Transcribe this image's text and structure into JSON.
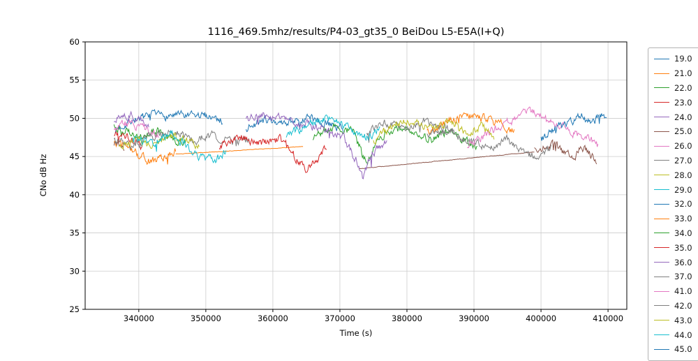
{
  "chart_data": {
    "type": "line",
    "title": "1116_469.5mhz/results/P4-03_gt35_0 BeiDou L5-E5A(I+Q)",
    "xlabel": "Time (s)",
    "ylabel": "CNo dB Hz",
    "xlim": [
      332000,
      412800
    ],
    "ylim": [
      25,
      60
    ],
    "xticks": [
      340000,
      350000,
      360000,
      370000,
      380000,
      390000,
      400000,
      410000
    ],
    "yticks": [
      25,
      30,
      35,
      40,
      45,
      50,
      55,
      60
    ],
    "grid": true,
    "grid_color": "#cccccc",
    "legend_position": "right-outside",
    "series": [
      {
        "name": "19.0",
        "color": "#1f77b4",
        "segments": [
          {
            "x": [
              336500,
              339000,
              342000,
              345000,
              348000,
              350500,
              352500
            ],
            "y": [
              48.5,
              49.8,
              50.3,
              50.4,
              50.2,
              50.4,
              49.6
            ],
            "noise": 0.45
          }
        ]
      },
      {
        "name": "21.0",
        "color": "#ff7f0e",
        "segments": [
          {
            "x": [
              336300,
              338500,
              340500,
              342500,
              344000,
              345500
            ],
            "y": [
              47.2,
              46.0,
              44.8,
              44.3,
              45.2,
              46.0
            ],
            "noise": 0.5
          },
          {
            "x": [
              345500,
              364500
            ],
            "y": [
              45.3,
              46.3
            ],
            "noise": 0.03
          }
        ]
      },
      {
        "name": "22.0",
        "color": "#2ca02c",
        "segments": [
          {
            "x": [
              336300,
              338000,
              340000,
              342500,
              345000,
              347000
            ],
            "y": [
              48.8,
              48.2,
              47.6,
              48.3,
              47.4,
              46.8
            ],
            "noise": 0.45
          }
        ]
      },
      {
        "name": "23.0",
        "color": "#d62728",
        "segments": [
          {
            "x": [
              336300,
              337500,
              339000,
              340500
            ],
            "y": [
              47.5,
              48.2,
              47.0,
              46.2
            ],
            "noise": 0.45
          }
        ]
      },
      {
        "name": "24.0",
        "color": "#9467bd",
        "segments": [
          {
            "x": [
              336300,
              338000,
              340000,
              341500
            ],
            "y": [
              49.7,
              50.4,
              50.1,
              49.3
            ],
            "noise": 0.45
          }
        ]
      },
      {
        "name": "25.0",
        "color": "#8c564b",
        "segments": [
          {
            "x": [
              336300,
              337800
            ],
            "y": [
              46.8,
              46.2
            ],
            "noise": 0.4
          },
          {
            "x": [
              372800,
              399000
            ],
            "y": [
              43.4,
              45.6
            ],
            "noise": 0.03
          },
          {
            "x": [
              399000,
              402000,
              404500,
              406500,
              408300
            ],
            "y": [
              45.8,
              46.5,
              45.0,
              46.2,
              44.5
            ],
            "noise": 0.5
          }
        ]
      },
      {
        "name": "26.0",
        "color": "#e377c2",
        "segments": [
          {
            "x": [
              336300,
              338500,
              341000,
              343000
            ],
            "y": [
              48.9,
              49.4,
              48.6,
              47.9
            ],
            "noise": 0.45
          }
        ]
      },
      {
        "name": "27.0",
        "color": "#7f7f7f",
        "segments": [
          {
            "x": [
              336300,
              339000,
              342000,
              345000,
              348000,
              351000,
              354000,
              356500
            ],
            "y": [
              47.0,
              46.4,
              47.6,
              48.3,
              47.2,
              47.8,
              46.9,
              47.4
            ],
            "noise": 0.45
          }
        ]
      },
      {
        "name": "28.0",
        "color": "#bcbd22",
        "segments": [
          {
            "x": [
              337000,
              339500,
              342000,
              344500,
              347000,
              349000
            ],
            "y": [
              46.2,
              47.3,
              46.5,
              47.8,
              47.1,
              46.4
            ],
            "noise": 0.45
          }
        ]
      },
      {
        "name": "29.0",
        "color": "#17becf",
        "segments": [
          {
            "x": [
              339000,
              342000,
              345000,
              347500,
              349500,
              351500,
              353000
            ],
            "y": [
              47.4,
              46.8,
              47.9,
              46.2,
              44.8,
              44.4,
              45.9
            ],
            "noise": 0.45
          }
        ]
      },
      {
        "name": "32.0",
        "color": "#1f77b4",
        "segments": [
          {
            "x": [
              356000,
              359000,
              362000,
              365000,
              368000,
              370500
            ],
            "y": [
              48.8,
              49.8,
              49.3,
              50.0,
              49.4,
              48.6
            ],
            "noise": 0.45
          }
        ]
      },
      {
        "name": "33.0",
        "color": "#ff7f0e",
        "segments": [
          {
            "x": [
              383000,
              386000,
              389000,
              391500,
              394000,
              396000
            ],
            "y": [
              48.0,
              49.6,
              50.4,
              50.0,
              49.3,
              48.2
            ],
            "noise": 0.45
          }
        ]
      },
      {
        "name": "34.0",
        "color": "#2ca02c",
        "segments": [
          {
            "x": [
              366000,
              369000,
              372000,
              374000,
              376000,
              378500,
              381000,
              383500,
              386000,
              388500,
              390500
            ],
            "y": [
              47.6,
              48.9,
              48.2,
              44.0,
              47.5,
              48.8,
              48.0,
              47.2,
              48.3,
              47.0,
              46.2
            ],
            "noise": 0.45
          }
        ]
      },
      {
        "name": "35.0",
        "color": "#d62728",
        "segments": [
          {
            "x": [
              352000,
              355000,
              358000,
              361000,
              363500,
              365000,
              366500,
              368000
            ],
            "y": [
              46.5,
              47.6,
              46.8,
              47.3,
              44.8,
              43.2,
              44.6,
              46.0
            ],
            "noise": 0.45
          }
        ]
      },
      {
        "name": "36.0",
        "color": "#9467bd",
        "segments": [
          {
            "x": [
              356000,
              359000,
              362000,
              365000,
              368000,
              370500,
              372500,
              373500,
              374500,
              377000
            ],
            "y": [
              49.9,
              50.5,
              49.8,
              49.2,
              48.6,
              47.4,
              44.5,
              41.9,
              45.0,
              47.3
            ],
            "noise": 0.45
          }
        ]
      },
      {
        "name": "37.0",
        "color": "#7f7f7f",
        "segments": [
          {
            "x": [
              383000,
              386000,
              389000,
              392000,
              395000,
              397500,
              399500,
              401500
            ],
            "y": [
              47.8,
              48.4,
              47.0,
              46.3,
              47.2,
              45.4,
              44.9,
              46.1
            ],
            "noise": 0.45
          }
        ]
      },
      {
        "name": "41.0",
        "color": "#e377c2",
        "segments": [
          {
            "x": [
              389000,
              392000,
              395000,
              397500,
              399000,
              401000,
              403000,
              405000,
              407000,
              408500
            ],
            "y": [
              46.3,
              48.0,
              49.5,
              50.6,
              50.8,
              49.6,
              48.8,
              48.0,
              47.6,
              46.3
            ],
            "noise": 0.45
          }
        ]
      },
      {
        "name": "42.0",
        "color": "#7f7f7f",
        "segments": [
          {
            "x": [
              374000,
              377000,
              380000,
              382500,
              385000,
              387000
            ],
            "y": [
              48.3,
              49.4,
              48.7,
              49.8,
              48.9,
              48.1
            ],
            "noise": 0.45
          }
        ]
      },
      {
        "name": "43.0",
        "color": "#bcbd22",
        "segments": [
          {
            "x": [
              375000,
              378000,
              381000,
              384000,
              386500,
              389000,
              391000,
              393000
            ],
            "y": [
              47.0,
              49.2,
              49.8,
              48.6,
              49.5,
              48.2,
              49.0,
              47.4
            ],
            "noise": 0.45
          }
        ]
      },
      {
        "name": "44.0",
        "color": "#17becf",
        "segments": [
          {
            "x": [
              362000,
              365000,
              368000,
              370000,
              372000,
              374000,
              376000
            ],
            "y": [
              47.9,
              49.1,
              50.0,
              49.4,
              48.3,
              47.5,
              48.6
            ],
            "noise": 0.45
          }
        ]
      },
      {
        "name": "45.0",
        "color": "#1f77b4",
        "segments": [
          {
            "x": [
              400000,
              402500,
              404500,
              406000,
              407500,
              409000,
              409800
            ],
            "y": [
              47.2,
              48.8,
              49.6,
              50.2,
              49.4,
              50.4,
              49.8
            ],
            "noise": 0.45
          }
        ]
      }
    ]
  }
}
